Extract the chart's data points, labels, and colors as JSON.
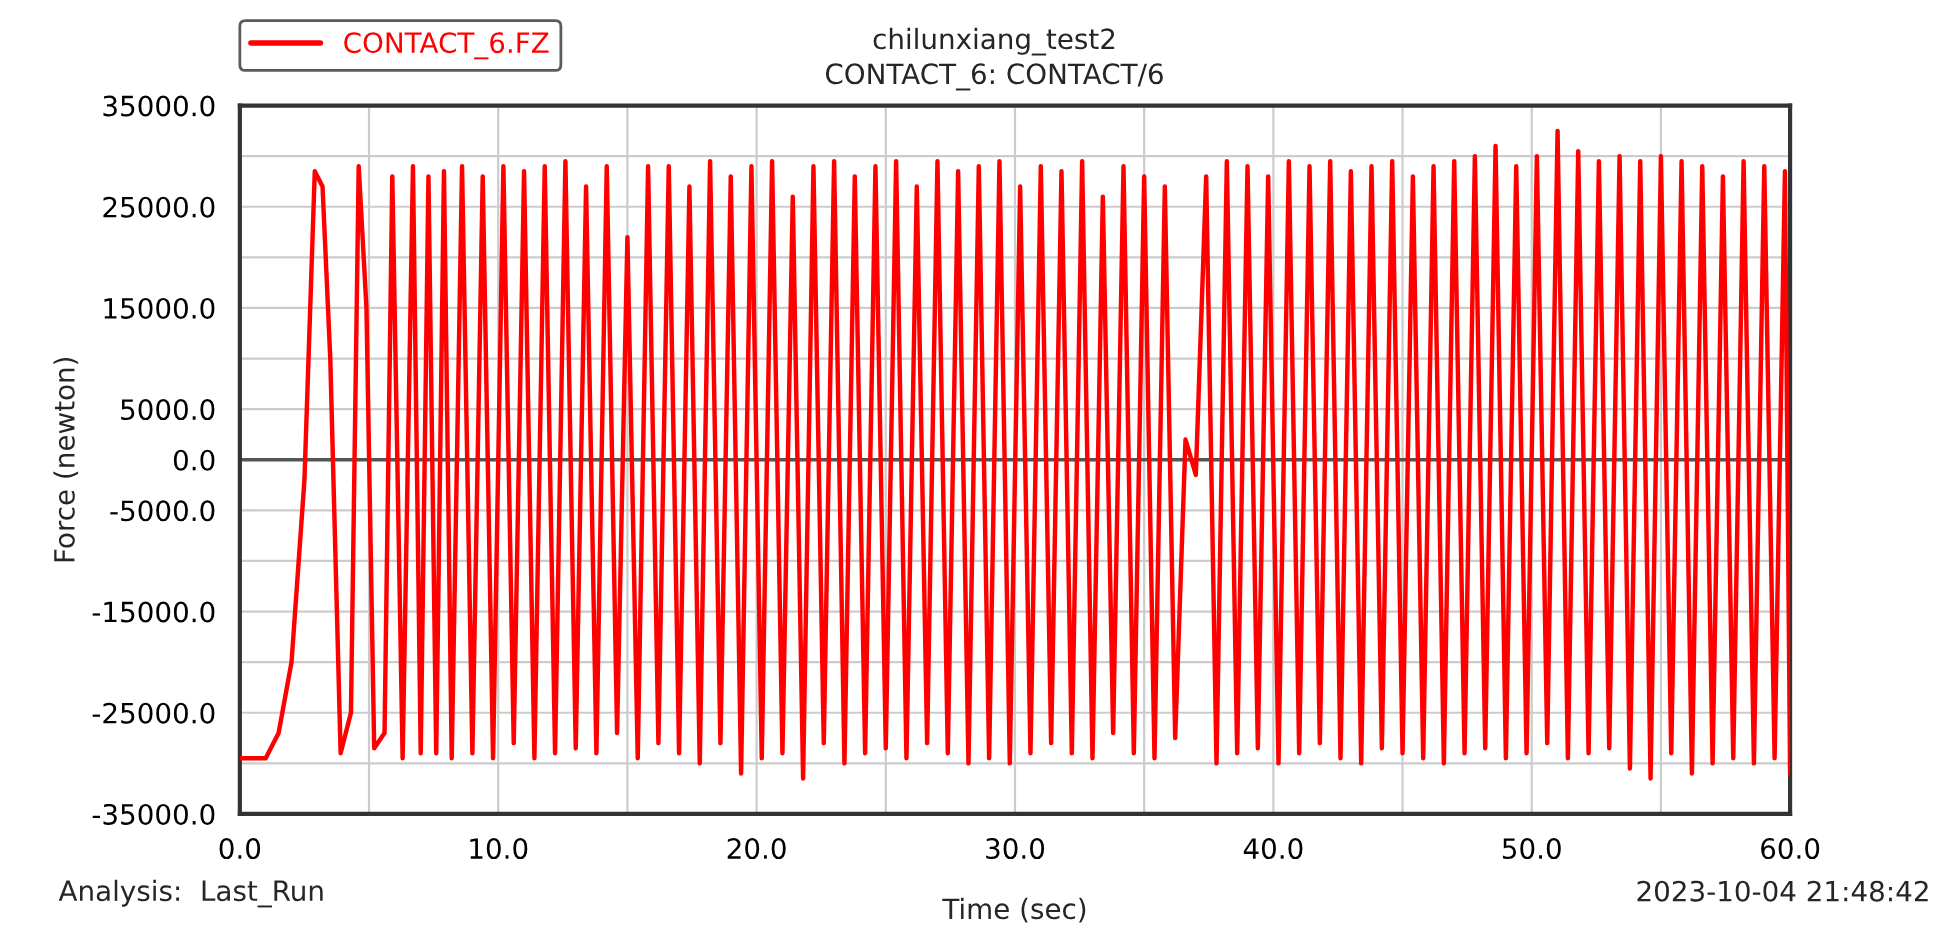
{
  "chart_data": {
    "type": "line",
    "title": "chilunxiang_test2",
    "subtitle": "CONTACT_6: CONTACT/6",
    "xlabel": "Time (sec)",
    "ylabel": "Force (newton)",
    "annotations": [
      "Analysis:  Last_Run",
      "2023-10-04 21:48:42"
    ],
    "xlim": [
      0,
      60
    ],
    "xticks": [
      {
        "value": 0,
        "label": "0.0"
      },
      {
        "value": 5,
        "label": null
      },
      {
        "value": 10,
        "label": "10.0"
      },
      {
        "value": 15,
        "label": null
      },
      {
        "value": 20,
        "label": "20.0"
      },
      {
        "value": 25,
        "label": null
      },
      {
        "value": 30,
        "label": "30.0"
      },
      {
        "value": 35,
        "label": null
      },
      {
        "value": 40,
        "label": "40.0"
      },
      {
        "value": 45,
        "label": null
      },
      {
        "value": 50,
        "label": "50.0"
      },
      {
        "value": 55,
        "label": null
      },
      {
        "value": 60,
        "label": "60.0"
      }
    ],
    "ylim": [
      -35000,
      35000
    ],
    "yticks": [
      {
        "value": -35000,
        "label": "-35000.0"
      },
      {
        "value": -30000,
        "label": null
      },
      {
        "value": -25000,
        "label": "-25000.0"
      },
      {
        "value": -20000,
        "label": null
      },
      {
        "value": -15000,
        "label": "-15000.0"
      },
      {
        "value": -10000,
        "label": null
      },
      {
        "value": -5000,
        "label": "-5000.0"
      },
      {
        "value": 0,
        "label": "0.0"
      },
      {
        "value": 5000,
        "label": "5000.0"
      },
      {
        "value": 10000,
        "label": null
      },
      {
        "value": 15000,
        "label": "15000.0"
      },
      {
        "value": 20000,
        "label": null
      },
      {
        "value": 25000,
        "label": "25000.0"
      },
      {
        "value": 30000,
        "label": null
      },
      {
        "value": 35000,
        "label": "35000.0"
      }
    ],
    "ref_lines": [
      {
        "axis": "y",
        "value": 0,
        "color": "#555555"
      }
    ],
    "grid": true,
    "legend": "top left",
    "marker": "none",
    "line_style": "solid",
    "series": [
      {
        "name": "CONTACT_6.FZ",
        "color": "#ff0000",
        "x": [
          0,
          1.0,
          1.5,
          2.0,
          2.5,
          2.9,
          3.2,
          3.5,
          3.9,
          4.3,
          4.6,
          4.9,
          5.2,
          5.6,
          5.9,
          6.3,
          6.7,
          7.0,
          7.3,
          7.6,
          7.9,
          8.2,
          8.6,
          9.0,
          9.4,
          9.8,
          10.2,
          10.6,
          11.0,
          11.4,
          11.8,
          12.2,
          12.6,
          13.0,
          13.4,
          13.8,
          14.2,
          14.6,
          15.0,
          15.4,
          15.8,
          16.2,
          16.6,
          17.0,
          17.4,
          17.8,
          18.2,
          18.6,
          19.0,
          19.4,
          19.8,
          20.2,
          20.6,
          21.0,
          21.4,
          21.8,
          22.2,
          22.6,
          23.0,
          23.4,
          23.8,
          24.2,
          24.6,
          25.0,
          25.4,
          25.8,
          26.2,
          26.6,
          27.0,
          27.4,
          27.8,
          28.2,
          28.6,
          29.0,
          29.4,
          29.8,
          30.2,
          30.6,
          31.0,
          31.4,
          31.8,
          32.2,
          32.6,
          33.0,
          33.4,
          33.8,
          34.2,
          34.6,
          35.0,
          35.4,
          35.8,
          36.2,
          36.6,
          37.0,
          37.4,
          37.8,
          38.2,
          38.6,
          39.0,
          39.4,
          39.8,
          40.2,
          40.6,
          41.0,
          41.4,
          41.8,
          42.2,
          42.6,
          43.0,
          43.4,
          43.8,
          44.2,
          44.6,
          45.0,
          45.4,
          45.8,
          46.2,
          46.6,
          47.0,
          47.4,
          47.8,
          48.2,
          48.6,
          49.0,
          49.4,
          49.8,
          50.2,
          50.6,
          51.0,
          51.4,
          51.8,
          52.2,
          52.6,
          53.0,
          53.4,
          53.8,
          54.2,
          54.6,
          55.0,
          55.4,
          55.8,
          56.2,
          56.6,
          57.0,
          57.4,
          57.8,
          58.2,
          58.6,
          59.0,
          59.4,
          59.8,
          60.0
        ],
        "values": [
          -29500,
          -29500,
          -27000,
          -20000,
          -2000,
          28500,
          27000,
          10000,
          -29000,
          -25000,
          29000,
          15000,
          -28500,
          -27000,
          28000,
          -29500,
          29000,
          -29000,
          28000,
          -29000,
          28500,
          -29500,
          29000,
          -29000,
          28000,
          -29500,
          29000,
          -28000,
          28500,
          -29500,
          29000,
          -29000,
          29500,
          -28500,
          27000,
          -29000,
          29000,
          -27000,
          22000,
          -29500,
          29000,
          -28000,
          29000,
          -29000,
          27000,
          -30000,
          29500,
          -28000,
          28000,
          -31000,
          29000,
          -29500,
          29500,
          -29000,
          26000,
          -31500,
          29000,
          -28000,
          29500,
          -30000,
          28000,
          -29000,
          29000,
          -28500,
          29500,
          -29500,
          27000,
          -28000,
          29500,
          -29000,
          28500,
          -30000,
          29000,
          -29500,
          29500,
          -30000,
          27000,
          -29000,
          29000,
          -28000,
          28500,
          -29000,
          29500,
          -29500,
          26000,
          -27000,
          29000,
          -29000,
          28000,
          -29500,
          27000,
          -27500,
          2000,
          -1500,
          28000,
          -30000,
          29500,
          -29000,
          29000,
          -28500,
          28000,
          -30000,
          29500,
          -29000,
          29000,
          -28000,
          29500,
          -29500,
          28500,
          -30000,
          29000,
          -28500,
          29500,
          -29000,
          28000,
          -29500,
          29000,
          -30000,
          29500,
          -29000,
          30000,
          -28500,
          31000,
          -29500,
          29000,
          -29000,
          30000,
          -28000,
          32500,
          -29500,
          30500,
          -29000,
          29500,
          -28500,
          30000,
          -30500,
          29500,
          -31500,
          30000,
          -29000,
          29500,
          -31000,
          29000,
          -30000,
          28000,
          -29500,
          29500,
          -30000,
          29000,
          -29500,
          28500,
          -31000
        ]
      }
    ]
  }
}
